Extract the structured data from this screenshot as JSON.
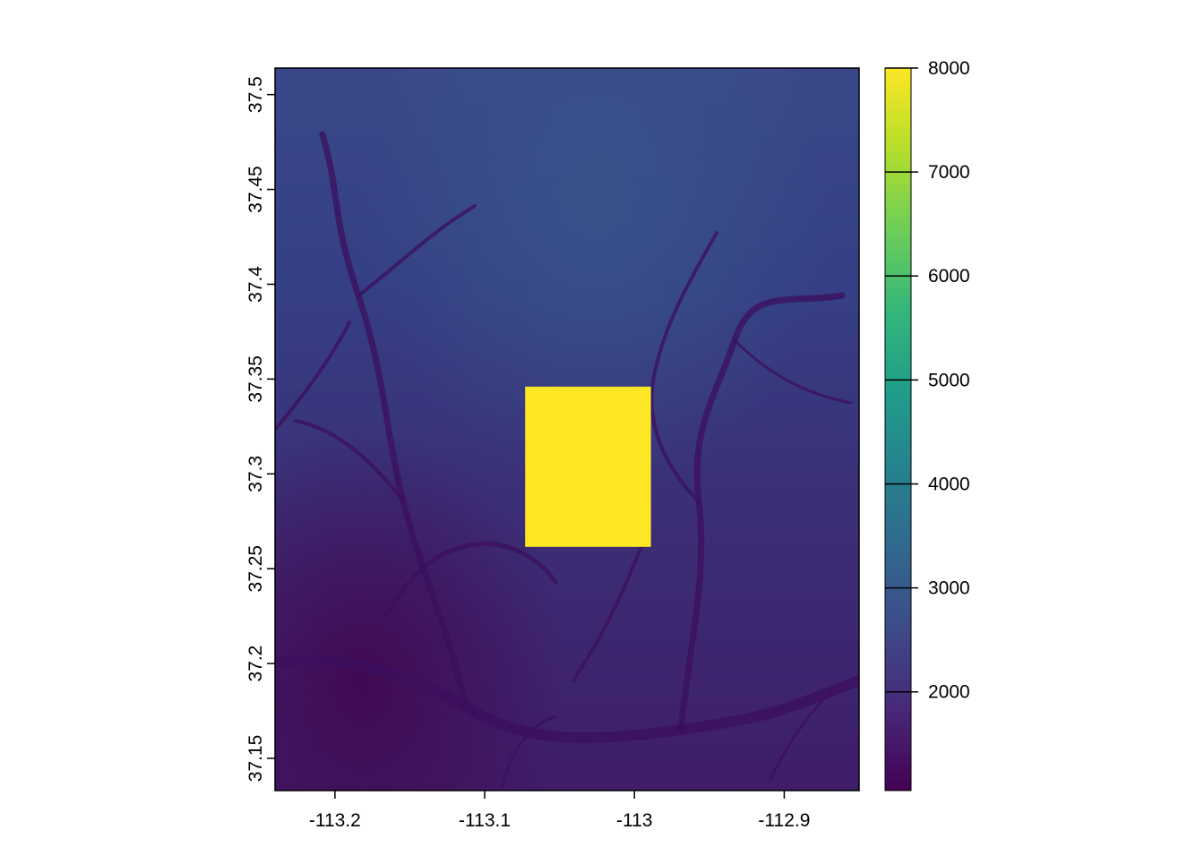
{
  "chart_data": {
    "type": "heatmap",
    "title": "",
    "xlabel": "",
    "ylabel": "",
    "xlim": [
      -113.24,
      -112.85
    ],
    "ylim": [
      37.133,
      37.514
    ],
    "x_ticks": [
      {
        "value": -113.2,
        "label": "-113.2"
      },
      {
        "value": -113.1,
        "label": "-113.1"
      },
      {
        "value": -113.0,
        "label": "-113"
      },
      {
        "value": -112.9,
        "label": "-112.9"
      }
    ],
    "y_ticks": [
      {
        "value": 37.15,
        "label": "37.15"
      },
      {
        "value": 37.2,
        "label": "37.2"
      },
      {
        "value": 37.25,
        "label": "37.25"
      },
      {
        "value": 37.3,
        "label": "37.3"
      },
      {
        "value": 37.35,
        "label": "37.35"
      },
      {
        "value": 37.4,
        "label": "37.4"
      },
      {
        "value": 37.45,
        "label": "37.45"
      },
      {
        "value": 37.5,
        "label": "37.5"
      }
    ],
    "raster_description": "elevation raster with dark drainage valleys, higher plateau toward the north",
    "raster_value_range": [
      1050,
      2800
    ],
    "highlighted_region": {
      "xmin": -113.073,
      "xmax": -112.989,
      "ymin": 37.2615,
      "ymax": 37.346,
      "value": 8000
    },
    "colorbar": {
      "min": 1050,
      "max": 8000,
      "ticks": [
        {
          "value": 2000,
          "label": "2000"
        },
        {
          "value": 3000,
          "label": "3000"
        },
        {
          "value": 4000,
          "label": "4000"
        },
        {
          "value": 5000,
          "label": "5000"
        },
        {
          "value": 6000,
          "label": "6000"
        },
        {
          "value": 7000,
          "label": "7000"
        },
        {
          "value": 8000,
          "label": "8000"
        }
      ],
      "palette": [
        "#440154",
        "#482878",
        "#3e4a89",
        "#31688e",
        "#26828e",
        "#1f9e89",
        "#35b779",
        "#6ece58",
        "#b5de2b",
        "#fde725"
      ],
      "position": "right"
    },
    "grid": false,
    "legend": "colorbar right"
  }
}
